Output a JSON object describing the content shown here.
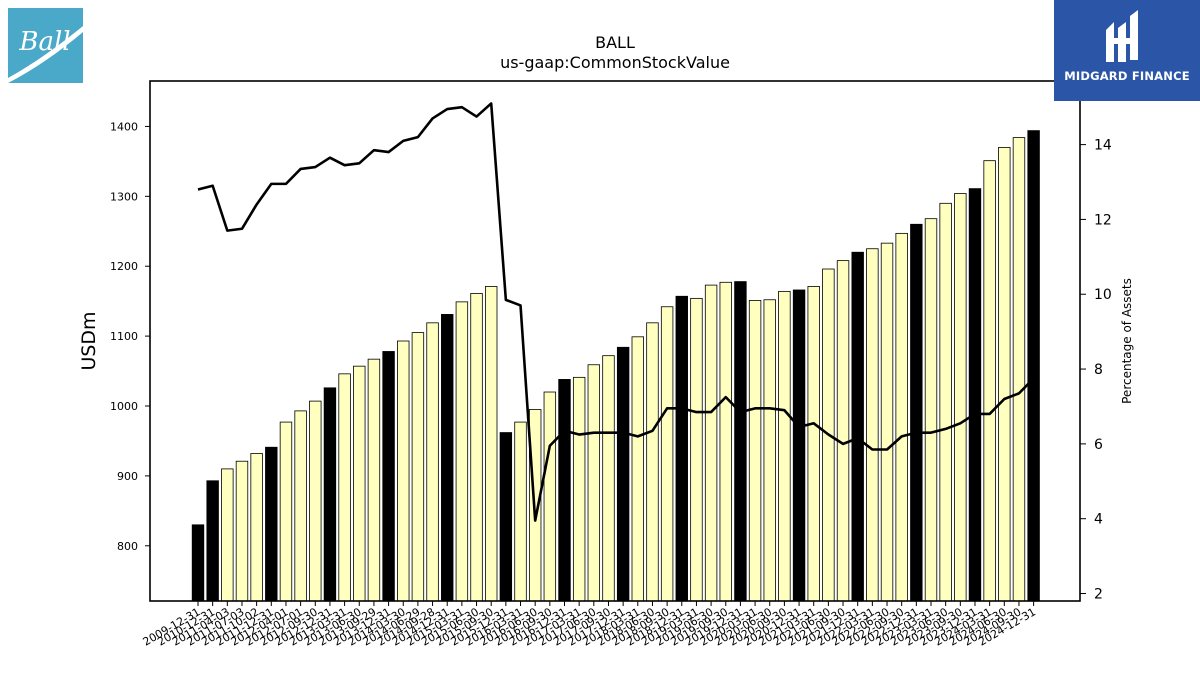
{
  "brand": {
    "left_logo_text": "Ball",
    "right_logo_text": "MIDGARD FINANCE",
    "left_logo_color": "#4aa9c8",
    "right_logo_color": "#2b56a8"
  },
  "chart_data": {
    "type": "bar",
    "title": "BALL",
    "subtitle": "us-gaap:CommonStockValue",
    "ylabel": "USDm",
    "y2label": "Percentage of Assets",
    "ylim": [
      721,
      1465
    ],
    "y2lim": [
      1.8,
      15.7
    ],
    "yticks": [
      800,
      900,
      1000,
      1100,
      1200,
      1300,
      1400
    ],
    "y2ticks": [
      2,
      4,
      6,
      8,
      10,
      12,
      14
    ],
    "grid": false,
    "bar_colors": {
      "fiscal_year_end": "#000000",
      "quarter": "#ffffc0"
    },
    "line_color": "#000000",
    "categories": [
      "2009-12-31",
      "2010-12-31",
      "2011-04-03",
      "2011-07-03",
      "2011-10-02",
      "2011-12-31",
      "2012-04-01",
      "2012-07-01",
      "2012-09-30",
      "2012-12-31",
      "2013-03-31",
      "2013-06-30",
      "2013-09-29",
      "2013-12-31",
      "2014-03-30",
      "2014-06-29",
      "2014-09-28",
      "2014-12-31",
      "2015-03-31",
      "2015-06-30",
      "2015-09-30",
      "2015-12-31",
      "2016-03-31",
      "2016-06-30",
      "2016-09-30",
      "2016-12-31",
      "2017-03-31",
      "2017-06-30",
      "2017-09-30",
      "2017-12-31",
      "2018-03-31",
      "2018-06-30",
      "2018-09-30",
      "2018-12-31",
      "2019-03-31",
      "2019-06-30",
      "2019-09-30",
      "2019-12-31",
      "2020-03-31",
      "2020-06-30",
      "2020-09-30",
      "2020-12-31",
      "2021-03-31",
      "2021-06-30",
      "2021-09-30",
      "2021-12-31",
      "2022-03-31",
      "2022-06-30",
      "2022-09-30",
      "2022-12-31",
      "2023-03-31",
      "2023-06-30",
      "2023-09-30",
      "2023-12-31",
      "2024-03-31",
      "2024-06-30",
      "2024-09-30",
      "2024-12-31"
    ],
    "year_end_flags": [
      true,
      true,
      false,
      false,
      false,
      true,
      false,
      false,
      false,
      true,
      false,
      false,
      false,
      true,
      false,
      false,
      false,
      true,
      false,
      false,
      false,
      true,
      false,
      false,
      false,
      true,
      false,
      false,
      false,
      true,
      false,
      false,
      false,
      true,
      false,
      false,
      false,
      true,
      false,
      false,
      false,
      true,
      false,
      false,
      false,
      true,
      false,
      false,
      false,
      true,
      false,
      false,
      false,
      true,
      false,
      false,
      false,
      true
    ],
    "series": [
      {
        "name": "CommonStockValue",
        "axis": "left",
        "values": [
          830,
          893,
          910,
          921,
          932,
          941,
          977,
          993,
          1007,
          1026,
          1046,
          1057,
          1067,
          1078,
          1093,
          1105,
          1119,
          1131,
          1149,
          1161,
          1171,
          962,
          977,
          995,
          1020,
          1038,
          1041,
          1059,
          1072,
          1084,
          1099,
          1119,
          1142,
          1157,
          1154,
          1173,
          1177,
          1178,
          1151,
          1152,
          1164,
          1166,
          1171,
          1196,
          1208,
          1220,
          1225,
          1233,
          1247,
          1260,
          1268,
          1290,
          1304,
          1311,
          1351,
          1370,
          1384,
          1394
        ]
      },
      {
        "name": "Percentage of Assets",
        "axis": "right",
        "values": [
          12.8,
          12.9,
          11.7,
          11.75,
          12.4,
          12.95,
          12.95,
          13.35,
          13.4,
          13.65,
          13.45,
          13.5,
          13.85,
          13.8,
          14.1,
          14.2,
          14.7,
          14.95,
          15.0,
          14.75,
          15.1,
          9.85,
          9.7,
          3.95,
          5.95,
          6.35,
          6.25,
          6.3,
          6.3,
          6.3,
          6.2,
          6.35,
          6.95,
          6.95,
          6.85,
          6.85,
          7.25,
          6.85,
          6.95,
          6.95,
          6.9,
          6.45,
          6.55,
          6.25,
          6.0,
          6.15,
          5.85,
          5.85,
          6.2,
          6.3,
          6.3,
          6.4,
          6.55,
          6.8,
          6.8,
          7.2,
          7.35,
          7.75
        ]
      }
    ]
  }
}
